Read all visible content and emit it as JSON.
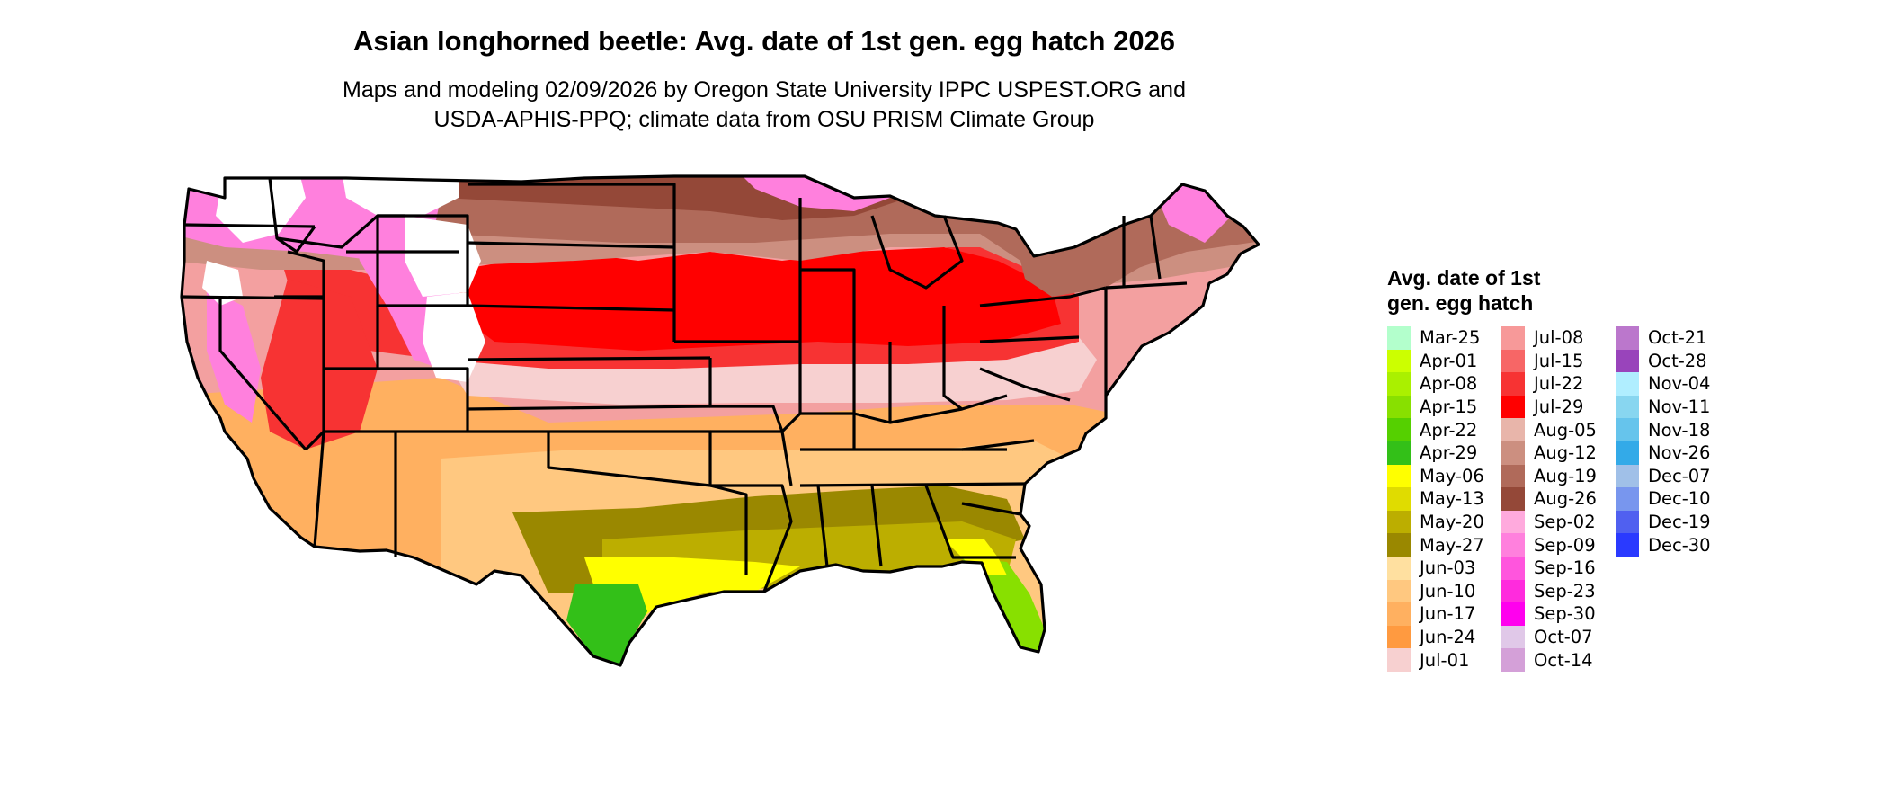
{
  "title": "Asian longhorned beetle: Avg. date of 1st gen. egg hatch 2026",
  "subtitle_line1": "Maps and modeling 02/09/2026 by Oregon State University IPPC USPEST.ORG and",
  "subtitle_line2": "USDA-APHIS-PPQ; climate data from OSU PRISM Climate Group",
  "legend": {
    "title": "Avg. date of 1st gen. egg hatch",
    "columns": [
      [
        {
          "label": "Mar-25",
          "color": "#b3ffcc"
        },
        {
          "label": "Apr-01",
          "color": "#ccff00"
        },
        {
          "label": "Apr-08",
          "color": "#aaf000"
        },
        {
          "label": "Apr-15",
          "color": "#88e000"
        },
        {
          "label": "Apr-22",
          "color": "#55d000"
        },
        {
          "label": "Apr-29",
          "color": "#33c018"
        },
        {
          "label": "May-06",
          "color": "#ffff00"
        },
        {
          "label": "May-13",
          "color": "#e0dc00"
        },
        {
          "label": "May-20",
          "color": "#bcae00"
        },
        {
          "label": "May-27",
          "color": "#9a8800"
        },
        {
          "label": "Jun-03",
          "color": "#ffe0a0"
        },
        {
          "label": "Jun-10",
          "color": "#ffc880"
        },
        {
          "label": "Jun-17",
          "color": "#ffb060"
        },
        {
          "label": "Jun-24",
          "color": "#ff9a40"
        },
        {
          "label": "Jul-01",
          "color": "#f7d0d0"
        }
      ],
      [
        {
          "label": "Jul-08",
          "color": "#f79999"
        },
        {
          "label": "Jul-15",
          "color": "#f76666"
        },
        {
          "label": "Jul-22",
          "color": "#f73333"
        },
        {
          "label": "Jul-29",
          "color": "#ff0000"
        },
        {
          "label": "Aug-05",
          "color": "#e8b5aa"
        },
        {
          "label": "Aug-12",
          "color": "#cc8f80"
        },
        {
          "label": "Aug-19",
          "color": "#b06a5a"
        },
        {
          "label": "Aug-26",
          "color": "#944838"
        },
        {
          "label": "Sep-02",
          "color": "#ffaadd"
        },
        {
          "label": "Sep-09",
          "color": "#ff80dd"
        },
        {
          "label": "Sep-16",
          "color": "#ff55dd"
        },
        {
          "label": "Sep-23",
          "color": "#ff2bdd"
        },
        {
          "label": "Sep-30",
          "color": "#ff00ee"
        },
        {
          "label": "Oct-07",
          "color": "#e0c8e8"
        },
        {
          "label": "Oct-14",
          "color": "#d4a0d8"
        }
      ],
      [
        {
          "label": "Oct-21",
          "color": "#bb77cc"
        },
        {
          "label": "Oct-28",
          "color": "#9944bb"
        },
        {
          "label": "Nov-04",
          "color": "#b0eeff"
        },
        {
          "label": "Nov-11",
          "color": "#88d6f0"
        },
        {
          "label": "Nov-18",
          "color": "#66c4ec"
        },
        {
          "label": "Nov-26",
          "color": "#33aae8"
        },
        {
          "label": "Dec-07",
          "color": "#a0c0e8"
        },
        {
          "label": "Dec-10",
          "color": "#7896ee"
        },
        {
          "label": "Dec-19",
          "color": "#5060f0"
        },
        {
          "label": "Dec-30",
          "color": "#2a3aff"
        }
      ]
    ]
  },
  "map_colors": {
    "land_base": "#f3a0a0",
    "red": "#ff0000",
    "red_mid": "#f73333",
    "brown": "#944838",
    "brown_mid": "#b06a5a",
    "tan": "#cc8f80",
    "pink_pale": "#f7d0d0",
    "orange": "#ffb060",
    "orange_light": "#ffc880",
    "olive": "#9a8800",
    "olive_light": "#bcae00",
    "yellow": "#ffff00",
    "green": "#33c018",
    "green_light": "#88e000",
    "magenta": "#ff80dd",
    "white": "#ffffff"
  }
}
